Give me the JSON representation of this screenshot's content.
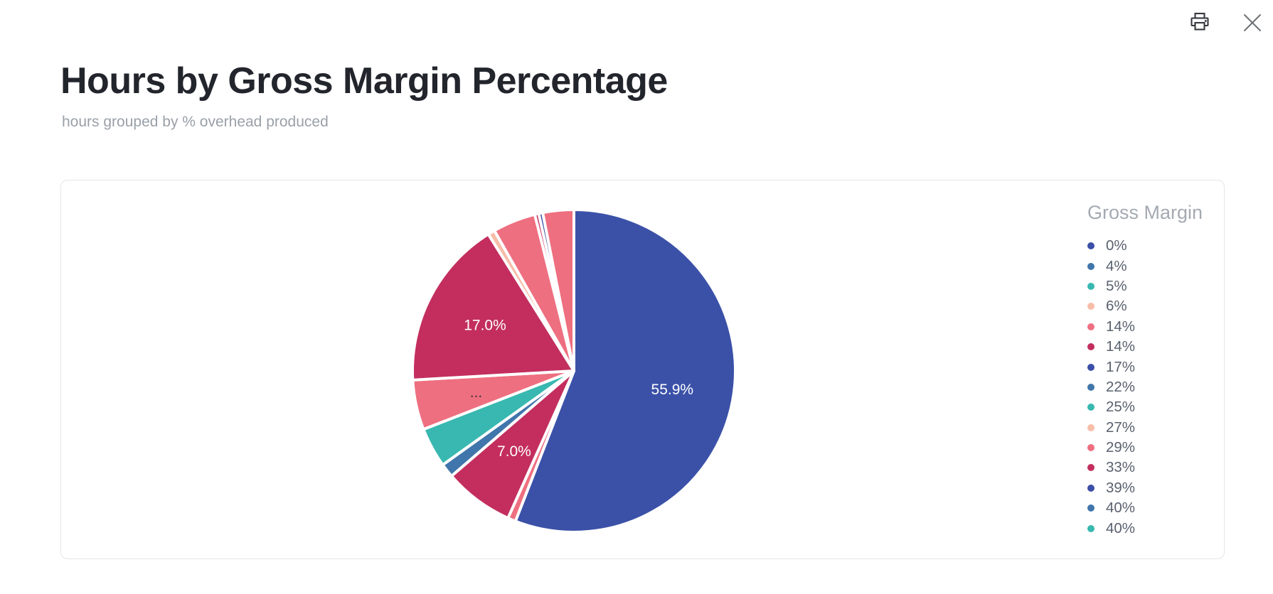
{
  "window": {
    "print_label": "Print",
    "close_label": "Close"
  },
  "header": {
    "title": "Hours by Gross Margin Percentage",
    "subtitle": "hours grouped by % overhead produced"
  },
  "chart_data": {
    "type": "pie",
    "title": "Hours by Gross Margin Percentage",
    "subtitle": "hours grouped by % overhead produced",
    "legend_title": "Gross Margin",
    "legend_position": "right",
    "values_unit": "percent of total hours",
    "palette": {
      "indigo": "#3b4fa7",
      "steel_blue": "#4076ab",
      "teal": "#38b8b0",
      "peach": "#f8bda9",
      "salmon": "#ee6f80",
      "crimson": "#c32e5e"
    },
    "legend": [
      {
        "label": "0%",
        "color": "#3b4fa7"
      },
      {
        "label": "4%",
        "color": "#4076ab"
      },
      {
        "label": "5%",
        "color": "#38b8b0"
      },
      {
        "label": "6%",
        "color": "#f8bda9"
      },
      {
        "label": "14%",
        "color": "#ee6f80"
      },
      {
        "label": "14%",
        "color": "#c32e5e"
      },
      {
        "label": "17%",
        "color": "#3b4fa7"
      },
      {
        "label": "22%",
        "color": "#4076ab"
      },
      {
        "label": "25%",
        "color": "#38b8b0"
      },
      {
        "label": "27%",
        "color": "#f8bda9"
      },
      {
        "label": "29%",
        "color": "#ee6f80"
      },
      {
        "label": "33%",
        "color": "#c32e5e"
      },
      {
        "label": "39%",
        "color": "#3b4fa7"
      },
      {
        "label": "40%",
        "color": "#4076ab"
      },
      {
        "label": "40%",
        "color": "#38b8b0"
      }
    ],
    "slices": [
      {
        "value": 55.9,
        "color": "#3b51a8",
        "label": "55.9%",
        "label_color": "#ffffff"
      },
      {
        "value": 0.8,
        "color": "#ee6f80"
      },
      {
        "value": 7.0,
        "color": "#c32e5e",
        "label": "7.0%",
        "label_color": "#ffffff"
      },
      {
        "value": 1.4,
        "color": "#4076ab"
      },
      {
        "value": 4.0,
        "color": "#38b8b0"
      },
      {
        "value": 5.0,
        "color": "#ee6f80",
        "label": "...",
        "label_color": "#41353b"
      },
      {
        "value": 17.0,
        "color": "#c32e5e",
        "label": "17.0%",
        "label_color": "#ffffff"
      },
      {
        "value": 0.7,
        "color": "#f8bda9"
      },
      {
        "value": 4.3,
        "color": "#ee6f80"
      },
      {
        "value": 0.4,
        "color": "#c32e5e"
      },
      {
        "value": 0.4,
        "color": "#3b4fa7"
      },
      {
        "value": 3.1,
        "color": "#ee6f80"
      }
    ]
  }
}
